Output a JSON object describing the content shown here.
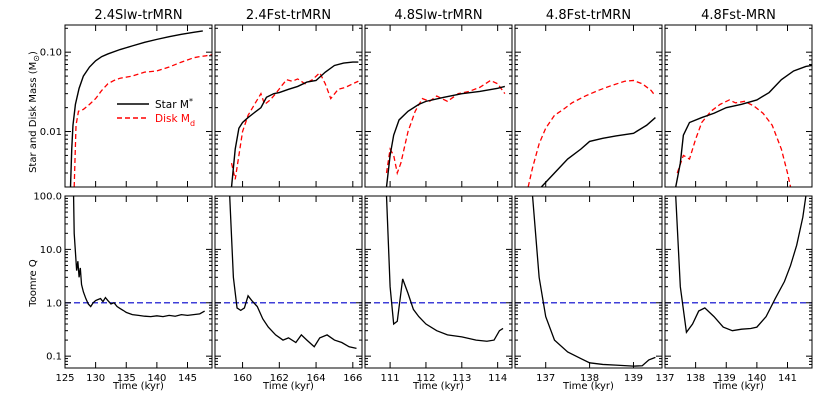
{
  "chart_data": {
    "type": "line",
    "layout": "2 rows x 5 columns of line panels",
    "row_labels": {
      "top": "Star and Disk Mass (M",
      "top_sub": "⊙",
      "top_close": ")",
      "bottom": "Toomre Q"
    },
    "xlabel": "Time (kyr)",
    "legend": {
      "placement": "upper-left of first top panel",
      "entries": [
        {
          "label": "Star M",
          "sub": "*",
          "color": "#000000",
          "dash": "solid"
        },
        {
          "label": "Disk M",
          "sub": "d",
          "color": "#ff0000",
          "dash": "dashed"
        }
      ]
    },
    "top_yaxis": {
      "scale": "log",
      "ylim": [
        0.002,
        0.22
      ],
      "ticks": [
        0.01,
        0.1
      ],
      "tick_labels": [
        "0.01",
        "0.10"
      ]
    },
    "bottom_yaxis": {
      "scale": "log",
      "ylim": [
        0.06,
        100
      ],
      "ticks": [
        0.1,
        1.0,
        10.0,
        100.0
      ],
      "tick_labels": [
        "0.1",
        "1.0",
        "10.0",
        "100.0"
      ]
    },
    "reference_line": {
      "y": 1.0,
      "color": "#0000cc",
      "dash": "dashed"
    },
    "panels": [
      {
        "title": "2.4Slw-trMRN",
        "xlim": [
          125,
          149
        ],
        "xticks": [
          125,
          130,
          135,
          140,
          145
        ],
        "star": [
          [
            125.9,
            0.002
          ],
          [
            126.1,
            0.006
          ],
          [
            126.3,
            0.012
          ],
          [
            126.7,
            0.022
          ],
          [
            127.3,
            0.035
          ],
          [
            128,
            0.05
          ],
          [
            129,
            0.065
          ],
          [
            130,
            0.078
          ],
          [
            131,
            0.088
          ],
          [
            132,
            0.095
          ],
          [
            134,
            0.108
          ],
          [
            136,
            0.12
          ],
          [
            138,
            0.133
          ],
          [
            140,
            0.145
          ],
          [
            142,
            0.157
          ],
          [
            144,
            0.168
          ],
          [
            146,
            0.178
          ],
          [
            147.5,
            0.185
          ]
        ],
        "disk": [
          [
            126.5,
            0.002
          ],
          [
            126.8,
            0.012
          ],
          [
            127.2,
            0.018
          ],
          [
            128,
            0.019
          ],
          [
            129,
            0.022
          ],
          [
            130,
            0.026
          ],
          [
            131,
            0.033
          ],
          [
            132,
            0.04
          ],
          [
            133,
            0.044
          ],
          [
            134,
            0.047
          ],
          [
            136,
            0.05
          ],
          [
            138,
            0.056
          ],
          [
            140,
            0.058
          ],
          [
            142,
            0.065
          ],
          [
            144,
            0.075
          ],
          [
            146,
            0.085
          ],
          [
            147,
            0.088
          ],
          [
            148,
            0.09
          ],
          [
            149,
            0.093
          ]
        ],
        "q": [
          [
            126.4,
            100
          ],
          [
            126.5,
            20
          ],
          [
            126.7,
            9
          ],
          [
            126.9,
            4
          ],
          [
            127.1,
            6
          ],
          [
            127.3,
            3
          ],
          [
            127.5,
            4.5
          ],
          [
            127.7,
            2.2
          ],
          [
            128,
            1.6
          ],
          [
            128.4,
            1.2
          ],
          [
            128.8,
            0.95
          ],
          [
            129.2,
            0.85
          ],
          [
            129.6,
            1.0
          ],
          [
            130,
            1.1
          ],
          [
            130.4,
            1.15
          ],
          [
            130.8,
            1.2
          ],
          [
            131.2,
            1.05
          ],
          [
            131.6,
            1.25
          ],
          [
            132,
            1.1
          ],
          [
            132.5,
            0.95
          ],
          [
            133,
            1.0
          ],
          [
            133.5,
            0.85
          ],
          [
            134,
            0.78
          ],
          [
            134.5,
            0.72
          ],
          [
            135,
            0.66
          ],
          [
            136,
            0.6
          ],
          [
            137,
            0.58
          ],
          [
            138,
            0.56
          ],
          [
            139,
            0.55
          ],
          [
            140,
            0.57
          ],
          [
            141,
            0.55
          ],
          [
            142,
            0.58
          ],
          [
            143,
            0.56
          ],
          [
            144,
            0.6
          ],
          [
            145,
            0.58
          ],
          [
            146,
            0.6
          ],
          [
            147,
            0.62
          ],
          [
            147.8,
            0.7
          ]
        ]
      },
      {
        "title": "2.4Fst-trMRN",
        "xlim": [
          158.5,
          166.5
        ],
        "xticks": [
          160,
          162,
          164,
          166
        ],
        "star": [
          [
            159.4,
            0.002
          ],
          [
            159.6,
            0.006
          ],
          [
            159.8,
            0.011
          ],
          [
            160,
            0.013
          ],
          [
            160.3,
            0.015
          ],
          [
            160.6,
            0.017
          ],
          [
            161,
            0.02
          ],
          [
            161.3,
            0.027
          ],
          [
            161.7,
            0.03
          ],
          [
            162,
            0.031
          ],
          [
            162.5,
            0.034
          ],
          [
            163,
            0.037
          ],
          [
            163.5,
            0.042
          ],
          [
            164,
            0.044
          ],
          [
            164.5,
            0.056
          ],
          [
            165,
            0.068
          ],
          [
            165.5,
            0.073
          ],
          [
            166,
            0.075
          ],
          [
            166.3,
            0.075
          ]
        ],
        "disk": [
          [
            159.4,
            0.004
          ],
          [
            159.6,
            0.0025
          ],
          [
            159.8,
            0.005
          ],
          [
            160,
            0.01
          ],
          [
            160.3,
            0.016
          ],
          [
            160.7,
            0.023
          ],
          [
            161,
            0.03
          ],
          [
            161.2,
            0.022
          ],
          [
            161.5,
            0.025
          ],
          [
            161.8,
            0.03
          ],
          [
            162.1,
            0.037
          ],
          [
            162.4,
            0.045
          ],
          [
            162.7,
            0.043
          ],
          [
            163,
            0.046
          ],
          [
            163.4,
            0.04
          ],
          [
            163.8,
            0.045
          ],
          [
            164.2,
            0.055
          ],
          [
            164.5,
            0.04
          ],
          [
            164.8,
            0.026
          ],
          [
            165.2,
            0.034
          ],
          [
            165.6,
            0.036
          ],
          [
            166,
            0.04
          ],
          [
            166.3,
            0.043
          ]
        ],
        "q": [
          [
            159.3,
            100
          ],
          [
            159.5,
            3
          ],
          [
            159.7,
            0.8
          ],
          [
            159.9,
            0.72
          ],
          [
            160.1,
            0.8
          ],
          [
            160.3,
            1.35
          ],
          [
            160.5,
            1.1
          ],
          [
            160.8,
            0.85
          ],
          [
            161.1,
            0.5
          ],
          [
            161.4,
            0.35
          ],
          [
            161.8,
            0.25
          ],
          [
            162.2,
            0.2
          ],
          [
            162.5,
            0.22
          ],
          [
            162.9,
            0.18
          ],
          [
            163.2,
            0.25
          ],
          [
            163.5,
            0.2
          ],
          [
            163.9,
            0.15
          ],
          [
            164.2,
            0.22
          ],
          [
            164.6,
            0.25
          ],
          [
            165,
            0.2
          ],
          [
            165.4,
            0.18
          ],
          [
            165.8,
            0.15
          ],
          [
            166.2,
            0.14
          ]
        ]
      },
      {
        "title": "4.8Slw-trMRN",
        "xlim": [
          110.3,
          114.4
        ],
        "xticks": [
          111,
          112,
          113,
          114
        ],
        "star": [
          [
            110.9,
            0.002
          ],
          [
            111,
            0.005
          ],
          [
            111.1,
            0.009
          ],
          [
            111.25,
            0.014
          ],
          [
            111.5,
            0.018
          ],
          [
            111.8,
            0.022
          ],
          [
            112,
            0.024
          ],
          [
            112.5,
            0.027
          ],
          [
            113,
            0.03
          ],
          [
            113.5,
            0.032
          ],
          [
            114,
            0.035
          ],
          [
            114.2,
            0.037
          ]
        ],
        "disk": [
          [
            110.9,
            0.003
          ],
          [
            111,
            0.006
          ],
          [
            111.1,
            0.005
          ],
          [
            111.2,
            0.003
          ],
          [
            111.3,
            0.004
          ],
          [
            111.5,
            0.01
          ],
          [
            111.7,
            0.018
          ],
          [
            111.9,
            0.026
          ],
          [
            112.1,
            0.024
          ],
          [
            112.3,
            0.028
          ],
          [
            112.6,
            0.024
          ],
          [
            112.9,
            0.03
          ],
          [
            113.2,
            0.032
          ],
          [
            113.5,
            0.036
          ],
          [
            113.8,
            0.044
          ],
          [
            114,
            0.04
          ],
          [
            114.2,
            0.03
          ]
        ],
        "q": [
          [
            110.9,
            100
          ],
          [
            111,
            2
          ],
          [
            111.1,
            0.4
          ],
          [
            111.2,
            0.45
          ],
          [
            111.35,
            2.8
          ],
          [
            111.5,
            1.5
          ],
          [
            111.65,
            0.75
          ],
          [
            111.8,
            0.55
          ],
          [
            112,
            0.4
          ],
          [
            112.3,
            0.3
          ],
          [
            112.6,
            0.25
          ],
          [
            113,
            0.23
          ],
          [
            113.4,
            0.2
          ],
          [
            113.7,
            0.19
          ],
          [
            113.9,
            0.2
          ],
          [
            114.05,
            0.3
          ],
          [
            114.15,
            0.33
          ]
        ]
      },
      {
        "title": "4.8Fst-trMRN",
        "xlim": [
          136.3,
          139.65
        ],
        "xticks": [
          137,
          138,
          139
        ],
        "star": [
          [
            136.9,
            0.002
          ],
          [
            137.2,
            0.003
          ],
          [
            137.5,
            0.0045
          ],
          [
            137.8,
            0.006
          ],
          [
            138,
            0.0075
          ],
          [
            138.3,
            0.0082
          ],
          [
            138.6,
            0.0088
          ],
          [
            139,
            0.0095
          ],
          [
            139.3,
            0.012
          ],
          [
            139.5,
            0.015
          ]
        ],
        "disk": [
          [
            136.6,
            0.002
          ],
          [
            136.7,
            0.0035
          ],
          [
            136.85,
            0.007
          ],
          [
            137,
            0.011
          ],
          [
            137.2,
            0.016
          ],
          [
            137.4,
            0.019
          ],
          [
            137.6,
            0.023
          ],
          [
            137.9,
            0.028
          ],
          [
            138.2,
            0.033
          ],
          [
            138.5,
            0.038
          ],
          [
            138.8,
            0.043
          ],
          [
            139,
            0.044
          ],
          [
            139.2,
            0.04
          ],
          [
            139.4,
            0.033
          ],
          [
            139.5,
            0.028
          ]
        ],
        "q": [
          [
            136.7,
            100
          ],
          [
            136.85,
            3
          ],
          [
            137,
            0.55
          ],
          [
            137.2,
            0.2
          ],
          [
            137.5,
            0.12
          ],
          [
            137.8,
            0.09
          ],
          [
            138,
            0.075
          ],
          [
            138.3,
            0.07
          ],
          [
            138.6,
            0.068
          ],
          [
            139,
            0.065
          ],
          [
            139.2,
            0.066
          ],
          [
            139.35,
            0.085
          ],
          [
            139.5,
            0.095
          ]
        ]
      },
      {
        "title": "4.8Fst-MRN",
        "xlim": [
          137,
          141.8
        ],
        "xticks": [
          137,
          138,
          139,
          140,
          141
        ],
        "star": [
          [
            137.35,
            0.002
          ],
          [
            137.5,
            0.004
          ],
          [
            137.6,
            0.009
          ],
          [
            137.8,
            0.013
          ],
          [
            138.2,
            0.015
          ],
          [
            138.6,
            0.017
          ],
          [
            139,
            0.02
          ],
          [
            139.5,
            0.022
          ],
          [
            140,
            0.025
          ],
          [
            140.4,
            0.031
          ],
          [
            140.8,
            0.045
          ],
          [
            141.2,
            0.058
          ],
          [
            141.6,
            0.066
          ],
          [
            141.8,
            0.068
          ]
        ],
        "disk": [
          [
            137.4,
            0.003
          ],
          [
            137.6,
            0.005
          ],
          [
            137.8,
            0.0045
          ],
          [
            138,
            0.008
          ],
          [
            138.2,
            0.013
          ],
          [
            138.5,
            0.018
          ],
          [
            138.8,
            0.022
          ],
          [
            139.1,
            0.025
          ],
          [
            139.3,
            0.023
          ],
          [
            139.6,
            0.024
          ],
          [
            139.9,
            0.021
          ],
          [
            140.2,
            0.017
          ],
          [
            140.5,
            0.012
          ],
          [
            140.8,
            0.006
          ],
          [
            141,
            0.003
          ],
          [
            141.1,
            0.002
          ]
        ],
        "q": [
          [
            137.35,
            100
          ],
          [
            137.5,
            2
          ],
          [
            137.7,
            0.28
          ],
          [
            137.9,
            0.4
          ],
          [
            138.1,
            0.7
          ],
          [
            138.3,
            0.8
          ],
          [
            138.6,
            0.55
          ],
          [
            138.9,
            0.35
          ],
          [
            139.2,
            0.3
          ],
          [
            139.5,
            0.32
          ],
          [
            139.8,
            0.33
          ],
          [
            140,
            0.35
          ],
          [
            140.3,
            0.55
          ],
          [
            140.6,
            1.2
          ],
          [
            140.9,
            2.5
          ],
          [
            141.1,
            5
          ],
          [
            141.3,
            12
          ],
          [
            141.5,
            40
          ],
          [
            141.6,
            100
          ]
        ]
      }
    ]
  }
}
